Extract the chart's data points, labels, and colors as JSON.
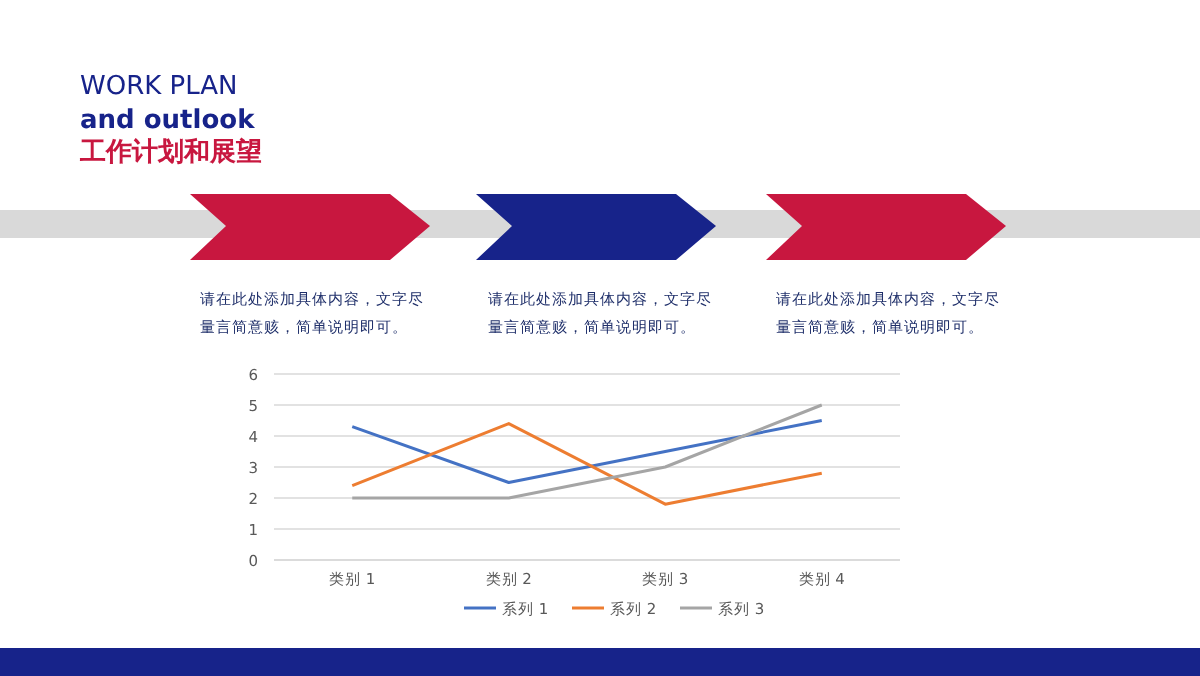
{
  "chart_data": {
    "type": "line",
    "title": "工作计划和展望",
    "annotations": [
      "WORK PLAN",
      "and outlook",
      "请在此处添加具体内容，文字尽",
      "量言简意赅，简单说明即可。",
      "请在此处添加具体内容，文字尽",
      "量言简意赅，简单说明即可。",
      "请在此处添加具体内容，文字尽",
      "量言简意赅，简单说明即可。"
    ],
    "categories": [
      "类别 1",
      "类别 2",
      "类别 3",
      "类别 4"
    ],
    "series": [
      {
        "name": "系列 1",
        "color": "#4472c4",
        "values": [
          4.3,
          2.5,
          3.5,
          4.5
        ]
      },
      {
        "name": "系列 2",
        "color": "#ed7d31",
        "values": [
          2.4,
          4.4,
          1.8,
          2.8
        ]
      },
      {
        "name": "系列 3",
        "color": "#a5a5a5",
        "values": [
          2,
          2,
          3,
          5
        ]
      }
    ],
    "ylim": [
      0,
      6
    ],
    "yticks": [
      0,
      1,
      2,
      3,
      4,
      5,
      6
    ],
    "grid": "y",
    "legend": "bottom",
    "marker": "none",
    "line_style": "solid"
  }
}
